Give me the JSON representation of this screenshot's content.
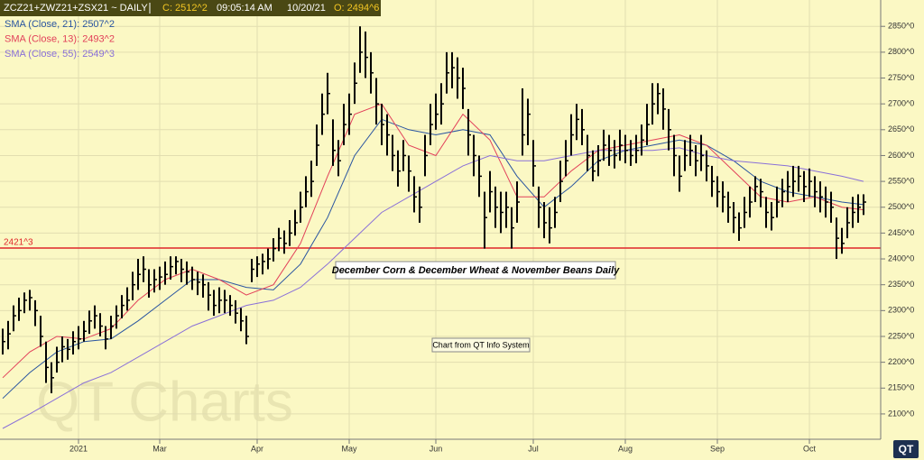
{
  "chart_data": {
    "type": "hlc",
    "title": "ZCZ21+ZWZ21+ZSX21  ~  DAILY",
    "header": [
      "C: 2512^2",
      "09:05:14 AM",
      "10/20/21",
      "O: 2494^6"
    ],
    "watermark": "QT Charts",
    "logo": "QT",
    "annotations": [
      "December Corn & December Wheat & November Beans Daily",
      "Chart from QT Info System"
    ],
    "hline": {
      "value": 2421,
      "label": "2421^3",
      "color": "#e0252a"
    },
    "bar_color": "#000000",
    "grid": true,
    "ylim": [
      2051,
      2901
    ],
    "yticks": [
      {
        "value": 2100,
        "label": "2100^0"
      },
      {
        "value": 2150,
        "label": "2150^0"
      },
      {
        "value": 2200,
        "label": "2200^0"
      },
      {
        "value": 2250,
        "label": "2250^0"
      },
      {
        "value": 2300,
        "label": "2300^0"
      },
      {
        "value": 2350,
        "label": "2350^0"
      },
      {
        "value": 2400,
        "label": "2400^0"
      },
      {
        "value": 2450,
        "label": "2450^0"
      },
      {
        "value": 2500,
        "label": "2500^0"
      },
      {
        "value": 2550,
        "label": "2550^0"
      },
      {
        "value": 2600,
        "label": "2600^0"
      },
      {
        "value": 2650,
        "label": "2650^0"
      },
      {
        "value": 2700,
        "label": "2700^0"
      },
      {
        "value": 2750,
        "label": "2750^0"
      },
      {
        "value": 2800,
        "label": "2800^0"
      },
      {
        "value": 2850,
        "label": "2850^0"
      }
    ],
    "categories": [
      null,
      null,
      null,
      null,
      null,
      null,
      null,
      null,
      null,
      null,
      null,
      null,
      null,
      null,
      "2021",
      null,
      null,
      null,
      null,
      null,
      null,
      null,
      null,
      null,
      null,
      null,
      null,
      null,
      null,
      "Mar",
      null,
      null,
      null,
      null,
      null,
      null,
      null,
      null,
      null,
      null,
      null,
      null,
      null,
      null,
      null,
      null,
      null,
      "Apr",
      null,
      null,
      null,
      null,
      null,
      null,
      null,
      null,
      null,
      null,
      null,
      null,
      null,
      null,
      null,
      null,
      "May",
      null,
      null,
      null,
      null,
      null,
      null,
      null,
      null,
      null,
      null,
      null,
      null,
      null,
      null,
      null,
      "Jun",
      null,
      null,
      null,
      null,
      null,
      null,
      null,
      null,
      null,
      null,
      null,
      null,
      null,
      null,
      null,
      null,
      null,
      "Jul",
      null,
      null,
      null,
      null,
      null,
      null,
      null,
      null,
      null,
      null,
      null,
      null,
      null,
      null,
      null,
      null,
      "Aug",
      null,
      null,
      null,
      null,
      null,
      null,
      null,
      null,
      null,
      null,
      null,
      null,
      null,
      null,
      null,
      null,
      "Sep",
      null,
      null,
      null,
      null,
      null,
      null,
      null,
      null,
      null,
      null,
      null,
      null,
      null,
      null,
      null,
      null,
      "Oct",
      null,
      null,
      null,
      null,
      null,
      null,
      null,
      null,
      null,
      null
    ],
    "high": [
      2265,
      2280,
      2310,
      2325,
      2335,
      2340,
      2320,
      2290,
      2240,
      2200,
      2230,
      2250,
      2245,
      2260,
      2270,
      2280,
      2300,
      2310,
      2295,
      2270,
      2290,
      2310,
      2330,
      2345,
      2375,
      2400,
      2405,
      2380,
      2380,
      2385,
      2395,
      2405,
      2405,
      2400,
      2395,
      2385,
      2375,
      2370,
      2355,
      2340,
      2345,
      2340,
      2330,
      2320,
      2305,
      2290,
      2400,
      2405,
      2410,
      2420,
      2440,
      2460,
      2455,
      2475,
      2495,
      2530,
      2560,
      2590,
      2660,
      2720,
      2760,
      2670,
      2630,
      2700,
      2720,
      2780,
      2850,
      2840,
      2800,
      2750,
      2700,
      2680,
      2640,
      2610,
      2630,
      2600,
      2560,
      2540,
      2640,
      2700,
      2720,
      2740,
      2800,
      2800,
      2790,
      2770,
      2690,
      2640,
      2600,
      2530,
      2570,
      2540,
      2530,
      2530,
      2500,
      2550,
      2730,
      2710,
      2630,
      2540,
      2510,
      2500,
      2520,
      2590,
      2630,
      2680,
      2700,
      2690,
      2640,
      2610,
      2620,
      2650,
      2640,
      2630,
      2650,
      2640,
      2630,
      2640,
      2660,
      2700,
      2740,
      2740,
      2730,
      2690,
      2640,
      2600,
      2630,
      2640,
      2620,
      2640,
      2610,
      2580,
      2560,
      2550,
      2530,
      2510,
      2490,
      2520,
      2540,
      2560,
      2555,
      2520,
      2510,
      2540,
      2555,
      2570,
      2580,
      2580,
      2570,
      2575,
      2560,
      2550,
      2540,
      2530,
      2480,
      2460,
      2500,
      2520,
      2525,
      2525
    ],
    "low": [
      2215,
      2225,
      2260,
      2280,
      2295,
      2300,
      2270,
      2230,
      2160,
      2140,
      2180,
      2200,
      2205,
      2215,
      2225,
      2240,
      2255,
      2265,
      2250,
      2225,
      2245,
      2265,
      2285,
      2300,
      2320,
      2340,
      2355,
      2325,
      2335,
      2340,
      2350,
      2360,
      2370,
      2355,
      2350,
      2340,
      2330,
      2325,
      2300,
      2290,
      2295,
      2295,
      2290,
      2275,
      2260,
      2235,
      2355,
      2365,
      2370,
      2380,
      2395,
      2415,
      2410,
      2425,
      2445,
      2470,
      2500,
      2520,
      2580,
      2640,
      2680,
      2580,
      2560,
      2620,
      2640,
      2700,
      2760,
      2750,
      2720,
      2660,
      2620,
      2600,
      2570,
      2540,
      2570,
      2530,
      2490,
      2470,
      2560,
      2620,
      2650,
      2660,
      2720,
      2730,
      2710,
      2690,
      2600,
      2560,
      2520,
      2420,
      2490,
      2460,
      2450,
      2460,
      2420,
      2470,
      2600,
      2620,
      2540,
      2460,
      2440,
      2430,
      2460,
      2510,
      2560,
      2600,
      2630,
      2620,
      2570,
      2550,
      2560,
      2590,
      2580,
      2575,
      2590,
      2585,
      2580,
      2585,
      2600,
      2620,
      2660,
      2680,
      2650,
      2610,
      2560,
      2530,
      2570,
      2580,
      2560,
      2570,
      2550,
      2520,
      2500,
      2490,
      2470,
      2450,
      2435,
      2460,
      2480,
      2510,
      2500,
      2460,
      2455,
      2480,
      2500,
      2510,
      2520,
      2530,
      2510,
      2520,
      2500,
      2490,
      2480,
      2470,
      2400,
      2410,
      2440,
      2460,
      2470,
      2485
    ],
    "close": [
      2240,
      2255,
      2290,
      2300,
      2320,
      2325,
      2300,
      2250,
      2190,
      2170,
      2200,
      2230,
      2225,
      2240,
      2245,
      2260,
      2280,
      2290,
      2270,
      2245,
      2270,
      2290,
      2310,
      2320,
      2350,
      2370,
      2380,
      2350,
      2360,
      2365,
      2370,
      2385,
      2395,
      2380,
      2375,
      2360,
      2355,
      2350,
      2330,
      2310,
      2320,
      2320,
      2310,
      2295,
      2280,
      2250,
      2380,
      2390,
      2395,
      2400,
      2420,
      2440,
      2430,
      2450,
      2470,
      2500,
      2530,
      2550,
      2620,
      2680,
      2720,
      2610,
      2590,
      2660,
      2680,
      2740,
      2800,
      2790,
      2760,
      2700,
      2660,
      2640,
      2600,
      2570,
      2600,
      2570,
      2520,
      2500,
      2600,
      2660,
      2680,
      2700,
      2760,
      2770,
      2750,
      2730,
      2640,
      2600,
      2560,
      2480,
      2530,
      2500,
      2490,
      2500,
      2460,
      2510,
      2640,
      2680,
      2580,
      2500,
      2470,
      2460,
      2490,
      2550,
      2590,
      2640,
      2670,
      2650,
      2600,
      2570,
      2590,
      2620,
      2610,
      2600,
      2620,
      2610,
      2600,
      2610,
      2630,
      2660,
      2700,
      2720,
      2690,
      2650,
      2600,
      2560,
      2600,
      2610,
      2590,
      2600,
      2580,
      2550,
      2530,
      2520,
      2500,
      2480,
      2460,
      2490,
      2510,
      2540,
      2530,
      2490,
      2480,
      2510,
      2530,
      2540,
      2550,
      2560,
      2540,
      2550,
      2530,
      2520,
      2510,
      2500,
      2440,
      2430,
      2470,
      2490,
      2500,
      2510
    ],
    "series": [
      {
        "name": "SMA (Close, 21): 2507^2",
        "color": "#2a55a0",
        "x": [
          0,
          5,
          10,
          15,
          20,
          25,
          30,
          35,
          40,
          45,
          50,
          55,
          60,
          65,
          70,
          75,
          80,
          85,
          90,
          95,
          100,
          105,
          110,
          115,
          120,
          125,
          130,
          135,
          140,
          145,
          150,
          155,
          159
        ],
        "values": [
          2130,
          2180,
          2220,
          2240,
          2245,
          2280,
          2320,
          2360,
          2360,
          2345,
          2340,
          2390,
          2480,
          2600,
          2670,
          2650,
          2640,
          2650,
          2640,
          2560,
          2500,
          2540,
          2590,
          2610,
          2620,
          2630,
          2620,
          2590,
          2550,
          2530,
          2520,
          2510,
          2505
        ]
      },
      {
        "name": "SMA (Close, 13): 2493^2",
        "color": "#e2405a",
        "x": [
          0,
          5,
          10,
          15,
          20,
          25,
          30,
          35,
          40,
          45,
          50,
          55,
          60,
          65,
          70,
          75,
          80,
          85,
          90,
          95,
          100,
          105,
          110,
          115,
          120,
          125,
          130,
          135,
          140,
          145,
          150,
          155,
          159
        ],
        "values": [
          2170,
          2220,
          2250,
          2245,
          2265,
          2320,
          2360,
          2380,
          2360,
          2330,
          2350,
          2430,
          2560,
          2680,
          2700,
          2620,
          2600,
          2680,
          2630,
          2520,
          2520,
          2570,
          2610,
          2620,
          2630,
          2640,
          2620,
          2570,
          2520,
          2510,
          2520,
          2500,
          2495
        ]
      },
      {
        "name": "SMA (Close, 55): 2549^3",
        "color": "#8a70d8",
        "x": [
          0,
          5,
          10,
          15,
          20,
          25,
          30,
          35,
          40,
          45,
          50,
          55,
          60,
          65,
          70,
          75,
          80,
          85,
          90,
          95,
          100,
          105,
          110,
          115,
          120,
          125,
          130,
          135,
          140,
          145,
          150,
          155,
          159
        ],
        "values": [
          2072,
          2100,
          2130,
          2160,
          2180,
          2210,
          2240,
          2270,
          2290,
          2310,
          2320,
          2345,
          2390,
          2440,
          2490,
          2520,
          2550,
          2580,
          2600,
          2590,
          2590,
          2600,
          2610,
          2610,
          2610,
          2615,
          2600,
          2590,
          2585,
          2580,
          2570,
          2560,
          2550
        ]
      }
    ]
  }
}
